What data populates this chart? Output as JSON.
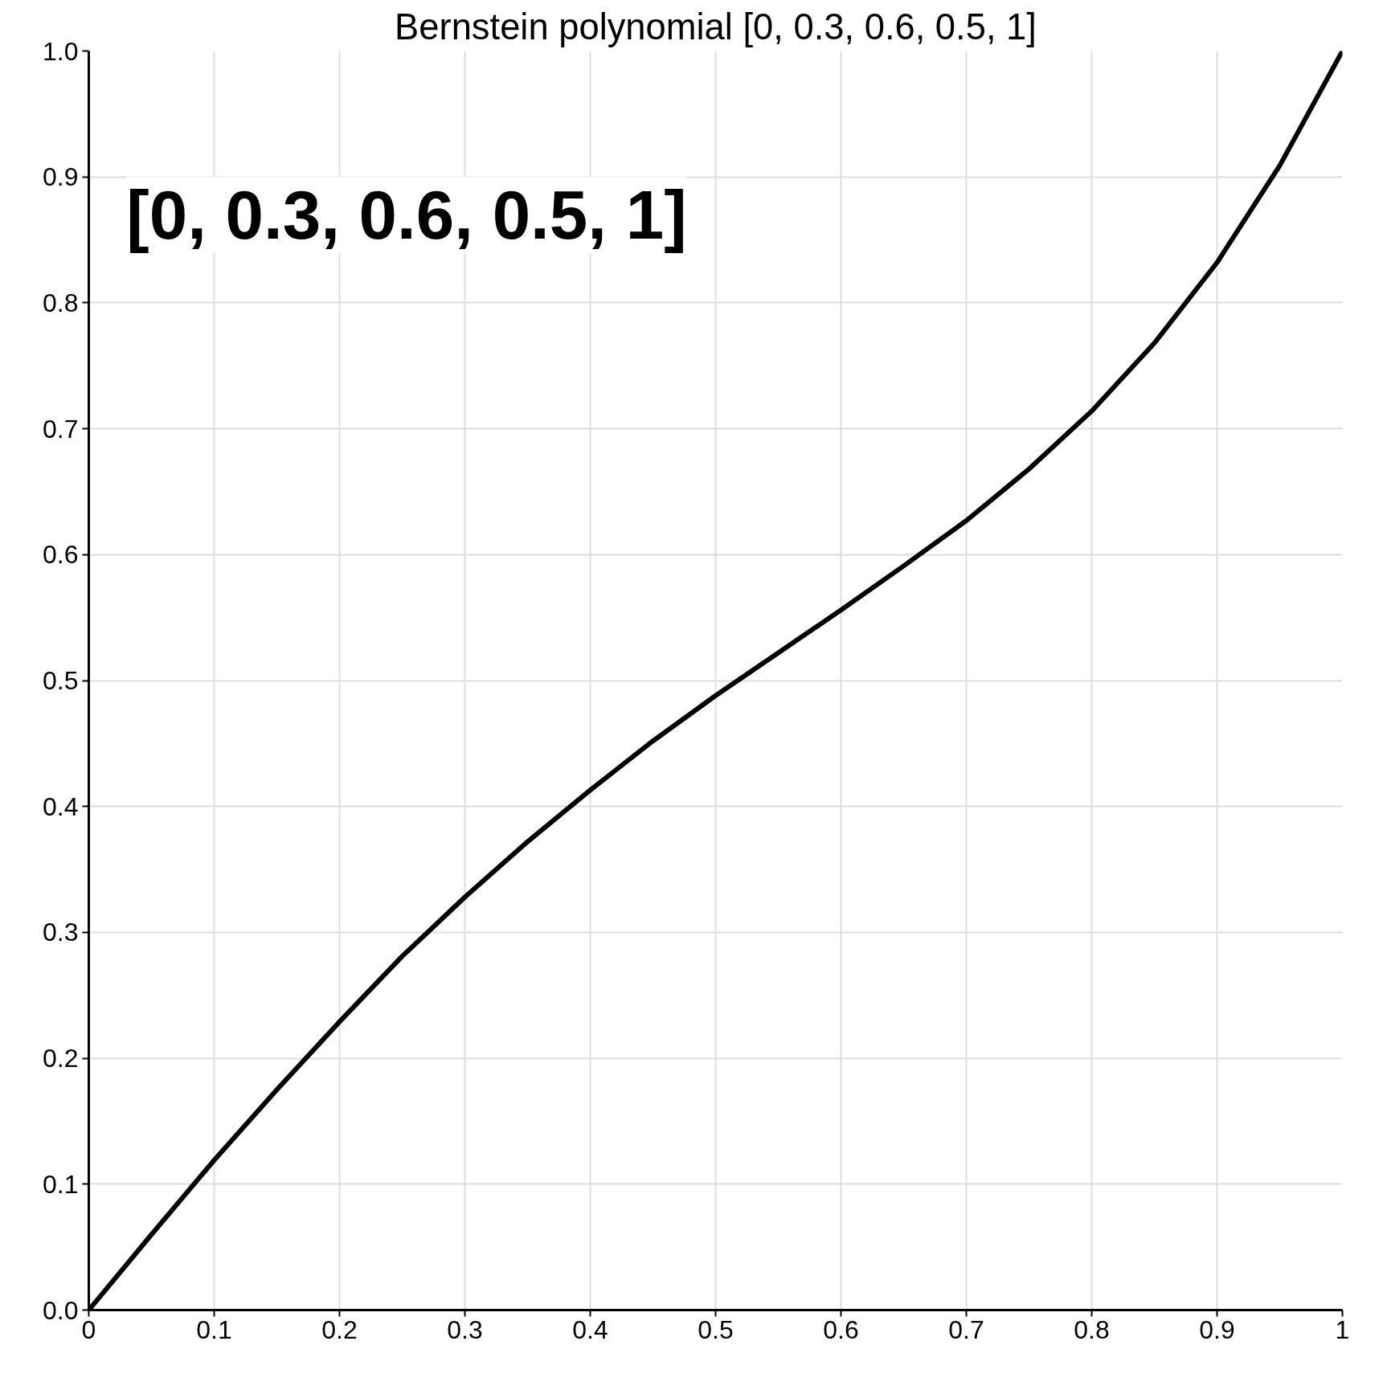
{
  "chart_data": {
    "type": "line",
    "title": "Bernstein polynomial [0, 0.3, 0.6, 0.5, 1]",
    "x": [
      0,
      0.05,
      0.1,
      0.15,
      0.2,
      0.25,
      0.3,
      0.35,
      0.4,
      0.45,
      0.5,
      0.55,
      0.6,
      0.65,
      0.7,
      0.75,
      0.8,
      0.85,
      0.9,
      0.95,
      1
    ],
    "series": [
      {
        "color": "#000000",
        "values": [
          0,
          0.06,
          0.119,
          0.175,
          0.229,
          0.281,
          0.328,
          0.372,
          0.413,
          0.452,
          0.488,
          0.522,
          0.556,
          0.591,
          0.627,
          0.668,
          0.714,
          0.768,
          0.832,
          0.909,
          1
        ]
      }
    ],
    "xlim": [
      0,
      1
    ],
    "ylim": [
      0,
      1
    ],
    "xticks": [
      0,
      0.1,
      0.2,
      0.3,
      0.4,
      0.5,
      0.6,
      0.7,
      0.8,
      0.9,
      1
    ],
    "yticks": [
      {
        "value": 0,
        "label": "0.0"
      },
      0.1,
      0.2,
      0.3,
      0.4,
      0.5,
      0.6,
      0.7,
      0.8,
      0.9,
      {
        "value": 1,
        "label": "1.0"
      }
    ],
    "grid": true,
    "marker": "none",
    "line_style": "solid",
    "annotations": [
      "[0, 0.3, 0.6, 0.5, 1]"
    ]
  }
}
